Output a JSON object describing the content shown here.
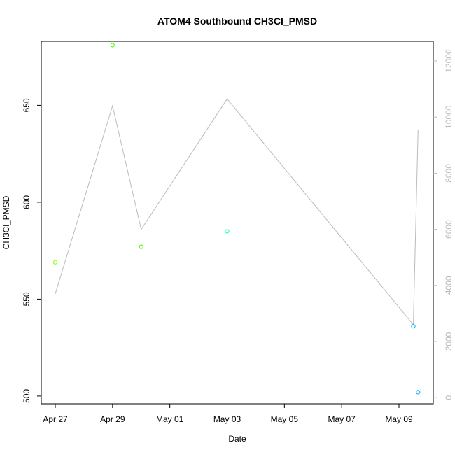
{
  "chart_data": {
    "type": "scatter",
    "title": "ATOM4 Southbound CH3Cl_PMSD",
    "xlabel": "Date",
    "ylabel": "CH3Cl_PMSD",
    "x_ticks": [
      "Apr 27",
      "Apr 29",
      "May 01",
      "May 03",
      "May 05",
      "May 07",
      "May 09"
    ],
    "left_axis": {
      "ticks": [
        500,
        550,
        600,
        650
      ],
      "ylim": [
        496,
        683
      ]
    },
    "right_axis": {
      "ticks": [
        0,
        2000,
        4000,
        6000,
        8000,
        10000,
        12000
      ],
      "ylim": [
        -220,
        12700
      ],
      "color": "#bbbbbb"
    },
    "points_left": [
      {
        "x": "Apr 27",
        "y": 569,
        "color": "#80ff00"
      },
      {
        "x": "Apr 29",
        "y": 681,
        "color": "#40ff00"
      },
      {
        "x": "Apr 30",
        "y": 577,
        "color": "#40ff00"
      },
      {
        "x": "May 03",
        "y": 585,
        "color": "#00ffbf"
      },
      {
        "x": "May 09 12:00",
        "y": 536,
        "color": "#00b0ff"
      },
      {
        "x": "May 09 16:00",
        "y": 502,
        "color": "#00a0ff"
      }
    ],
    "line_right": {
      "color": "#bbbbbb",
      "points": [
        {
          "x": "Apr 27",
          "y": 3700
        },
        {
          "x": "Apr 29",
          "y": 10400
        },
        {
          "x": "Apr 30",
          "y": 6000
        },
        {
          "x": "May 03",
          "y": 10650
        },
        {
          "x": "May 09 12:00",
          "y": 2600
        },
        {
          "x": "May 09 16:00",
          "y": 9550
        }
      ]
    }
  }
}
